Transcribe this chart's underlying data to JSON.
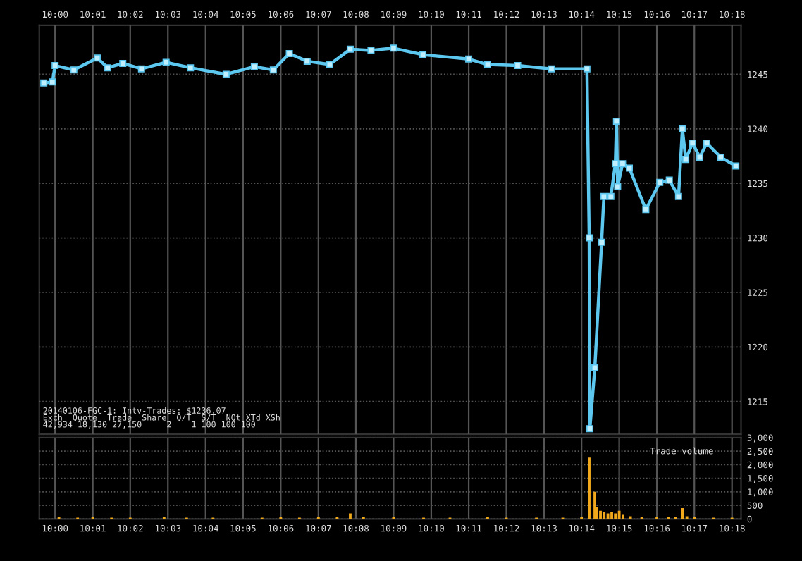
{
  "chart_data": [
    {
      "type": "line",
      "xlim": [
        9.993,
        10.304
      ],
      "ylim": [
        1212,
        1249.5
      ],
      "grid": true,
      "marker": "square",
      "line_style": "solid",
      "xticks": [
        {
          "value": 10.0,
          "label": "10:00"
        },
        {
          "value": 10.0167,
          "label": "10:01"
        },
        {
          "value": 10.0333,
          "label": "10:02"
        },
        {
          "value": 10.05,
          "label": "10:03"
        },
        {
          "value": 10.0667,
          "label": "10:04"
        },
        {
          "value": 10.0833,
          "label": "10:05"
        },
        {
          "value": 10.1,
          "label": "10:06"
        },
        {
          "value": 10.1167,
          "label": "10:07"
        },
        {
          "value": 10.1333,
          "label": "10:08"
        },
        {
          "value": 10.15,
          "label": "10:09"
        },
        {
          "value": 10.1667,
          "label": "10:10"
        },
        {
          "value": 10.1833,
          "label": "10:11"
        },
        {
          "value": 10.2,
          "label": "10:12"
        },
        {
          "value": 10.2167,
          "label": "10:13"
        },
        {
          "value": 10.2333,
          "label": "10:14"
        },
        {
          "value": 10.25,
          "label": "10:15"
        },
        {
          "value": 10.2667,
          "label": "10:16"
        },
        {
          "value": 10.2833,
          "label": "10:17"
        },
        {
          "value": 10.3,
          "label": "10:18"
        }
      ],
      "yticks": [
        1215,
        1220,
        1225,
        1230,
        1235,
        1240,
        1245
      ],
      "series": [
        {
          "color": "#5cc8f0",
          "x": [
            9.995,
            9.9988,
            10.0,
            10.0083,
            10.0187,
            10.0233,
            10.03,
            10.0383,
            10.0492,
            10.06,
            10.0758,
            10.0883,
            10.0967,
            10.1038,
            10.1117,
            10.1217,
            10.1308,
            10.14,
            10.15,
            10.163,
            10.1833,
            10.1917,
            10.205,
            10.22,
            10.2357,
            10.2367,
            10.237,
            10.2392,
            10.2422,
            10.2432,
            10.2463,
            10.2483,
            10.2488,
            10.2493,
            10.2515,
            10.2545,
            10.2618,
            10.268,
            10.2722,
            10.2763,
            10.278,
            10.2795,
            10.2825,
            10.2857,
            10.2888,
            10.295,
            10.3017
          ],
          "values": [
            1244.2,
            1244.3,
            1245.8,
            1245.4,
            1246.5,
            1245.6,
            1246.0,
            1245.5,
            1246.1,
            1245.6,
            1245.0,
            1245.7,
            1245.4,
            1246.9,
            1246.2,
            1245.9,
            1247.3,
            1247.2,
            1247.4,
            1246.8,
            1246.4,
            1245.9,
            1245.8,
            1245.5,
            1245.5,
            1230.0,
            1212.5,
            1218.1,
            1229.6,
            1233.8,
            1233.8,
            1236.8,
            1240.7,
            1234.7,
            1236.8,
            1236.4,
            1232.6,
            1235.1,
            1235.3,
            1233.8,
            1240.0,
            1237.2,
            1238.7,
            1237.4,
            1238.7,
            1237.4,
            1236.6
          ]
        }
      ]
    },
    {
      "type": "bar",
      "xlim": [
        9.993,
        10.304
      ],
      "ylim": [
        0,
        3000
      ],
      "grid": true,
      "xticks": [
        {
          "value": 10.0,
          "label": "10:00"
        },
        {
          "value": 10.0167,
          "label": "10:01"
        },
        {
          "value": 10.0333,
          "label": "10:02"
        },
        {
          "value": 10.05,
          "label": "10:03"
        },
        {
          "value": 10.0667,
          "label": "10:04"
        },
        {
          "value": 10.0833,
          "label": "10:05"
        },
        {
          "value": 10.1,
          "label": "10:06"
        },
        {
          "value": 10.1167,
          "label": "10:07"
        },
        {
          "value": 10.1333,
          "label": "10:08"
        },
        {
          "value": 10.15,
          "label": "10:09"
        },
        {
          "value": 10.1667,
          "label": "10:10"
        },
        {
          "value": 10.1833,
          "label": "10:11"
        },
        {
          "value": 10.2,
          "label": "10:12"
        },
        {
          "value": 10.2167,
          "label": "10:13"
        },
        {
          "value": 10.2333,
          "label": "10:14"
        },
        {
          "value": 10.25,
          "label": "10:15"
        },
        {
          "value": 10.2667,
          "label": "10:16"
        },
        {
          "value": 10.2833,
          "label": "10:17"
        },
        {
          "value": 10.3,
          "label": "10:18"
        }
      ],
      "yticks": [
        0,
        500,
        {
          "value": 1000,
          "label": "1,000"
        },
        {
          "value": 1500,
          "label": "1,500"
        },
        {
          "value": 2000,
          "label": "2,000"
        },
        {
          "value": 2500,
          "label": "2,500"
        },
        {
          "value": 3000,
          "label": "3,000"
        }
      ],
      "annotations": [
        "Trade volume",
        "20140106-FGC-1: Intv-Trades: $1236.07",
        "Exch  Quote  Trade  Share  Q/T  S/T  NQt XTd XSh",
        "42,934 18,130 27,150     2    1 100 100 100"
      ],
      "series": [
        {
          "color": "#f0a81c",
          "x": [
            10.0017,
            10.01,
            10.0167,
            10.025,
            10.0333,
            10.0483,
            10.0583,
            10.07,
            10.0917,
            10.1,
            10.1083,
            10.1167,
            10.125,
            10.1308,
            10.1367,
            10.15,
            10.1633,
            10.175,
            10.1917,
            10.2,
            10.2133,
            10.225,
            10.2333,
            10.2367,
            10.2392,
            10.24,
            10.2417,
            10.2433,
            10.245,
            10.2467,
            10.2483,
            10.25,
            10.2517,
            10.255,
            10.26,
            10.2667,
            10.2717,
            10.275,
            10.278,
            10.28,
            10.2833,
            10.2917,
            10.3
          ],
          "values": [
            60,
            50,
            60,
            50,
            50,
            60,
            50,
            50,
            50,
            60,
            50,
            60,
            60,
            200,
            60,
            60,
            50,
            50,
            60,
            50,
            50,
            50,
            60,
            2260,
            1000,
            450,
            300,
            250,
            200,
            250,
            200,
            300,
            150,
            100,
            80,
            60,
            60,
            80,
            400,
            100,
            60,
            50,
            50
          ]
        }
      ]
    }
  ]
}
